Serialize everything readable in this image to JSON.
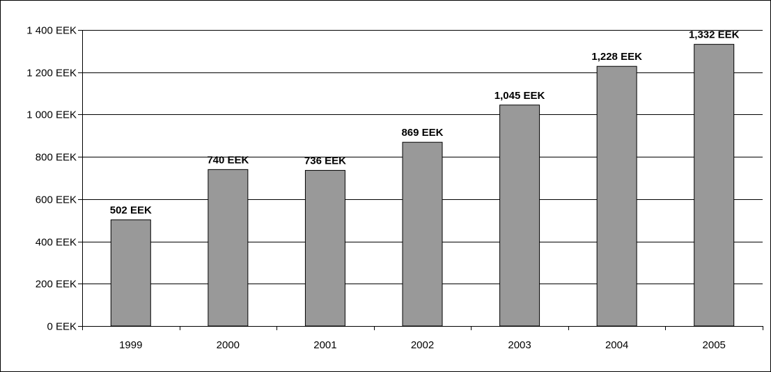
{
  "chart_data": {
    "type": "bar",
    "categories": [
      "1999",
      "2000",
      "2001",
      "2002",
      "2003",
      "2004",
      "2005"
    ],
    "values": [
      502,
      740,
      736,
      869,
      1045,
      1228,
      1332
    ],
    "data_labels": [
      "502 EEK",
      "740 EEK",
      "736 EEK",
      "869 EEK",
      "1,045 EEK",
      "1,228 EEK",
      "1,332 EEK"
    ],
    "y_ticks": [
      0,
      200,
      400,
      600,
      800,
      1000,
      1200,
      1400
    ],
    "y_tick_labels": [
      "0 EEK",
      "200 EEK",
      "400 EEK",
      "600 EEK",
      "800 EEK",
      "1 000 EEK",
      "1 200 EEK",
      "1 400 EEK"
    ],
    "ylim": [
      0,
      1400
    ],
    "title": "",
    "xlabel": "",
    "ylabel": "",
    "grid": true,
    "legend": "none",
    "colors": {
      "bar_fill": "#999999",
      "bar_stroke": "#000000",
      "grid": "#000000",
      "background": "#ffffff"
    }
  }
}
